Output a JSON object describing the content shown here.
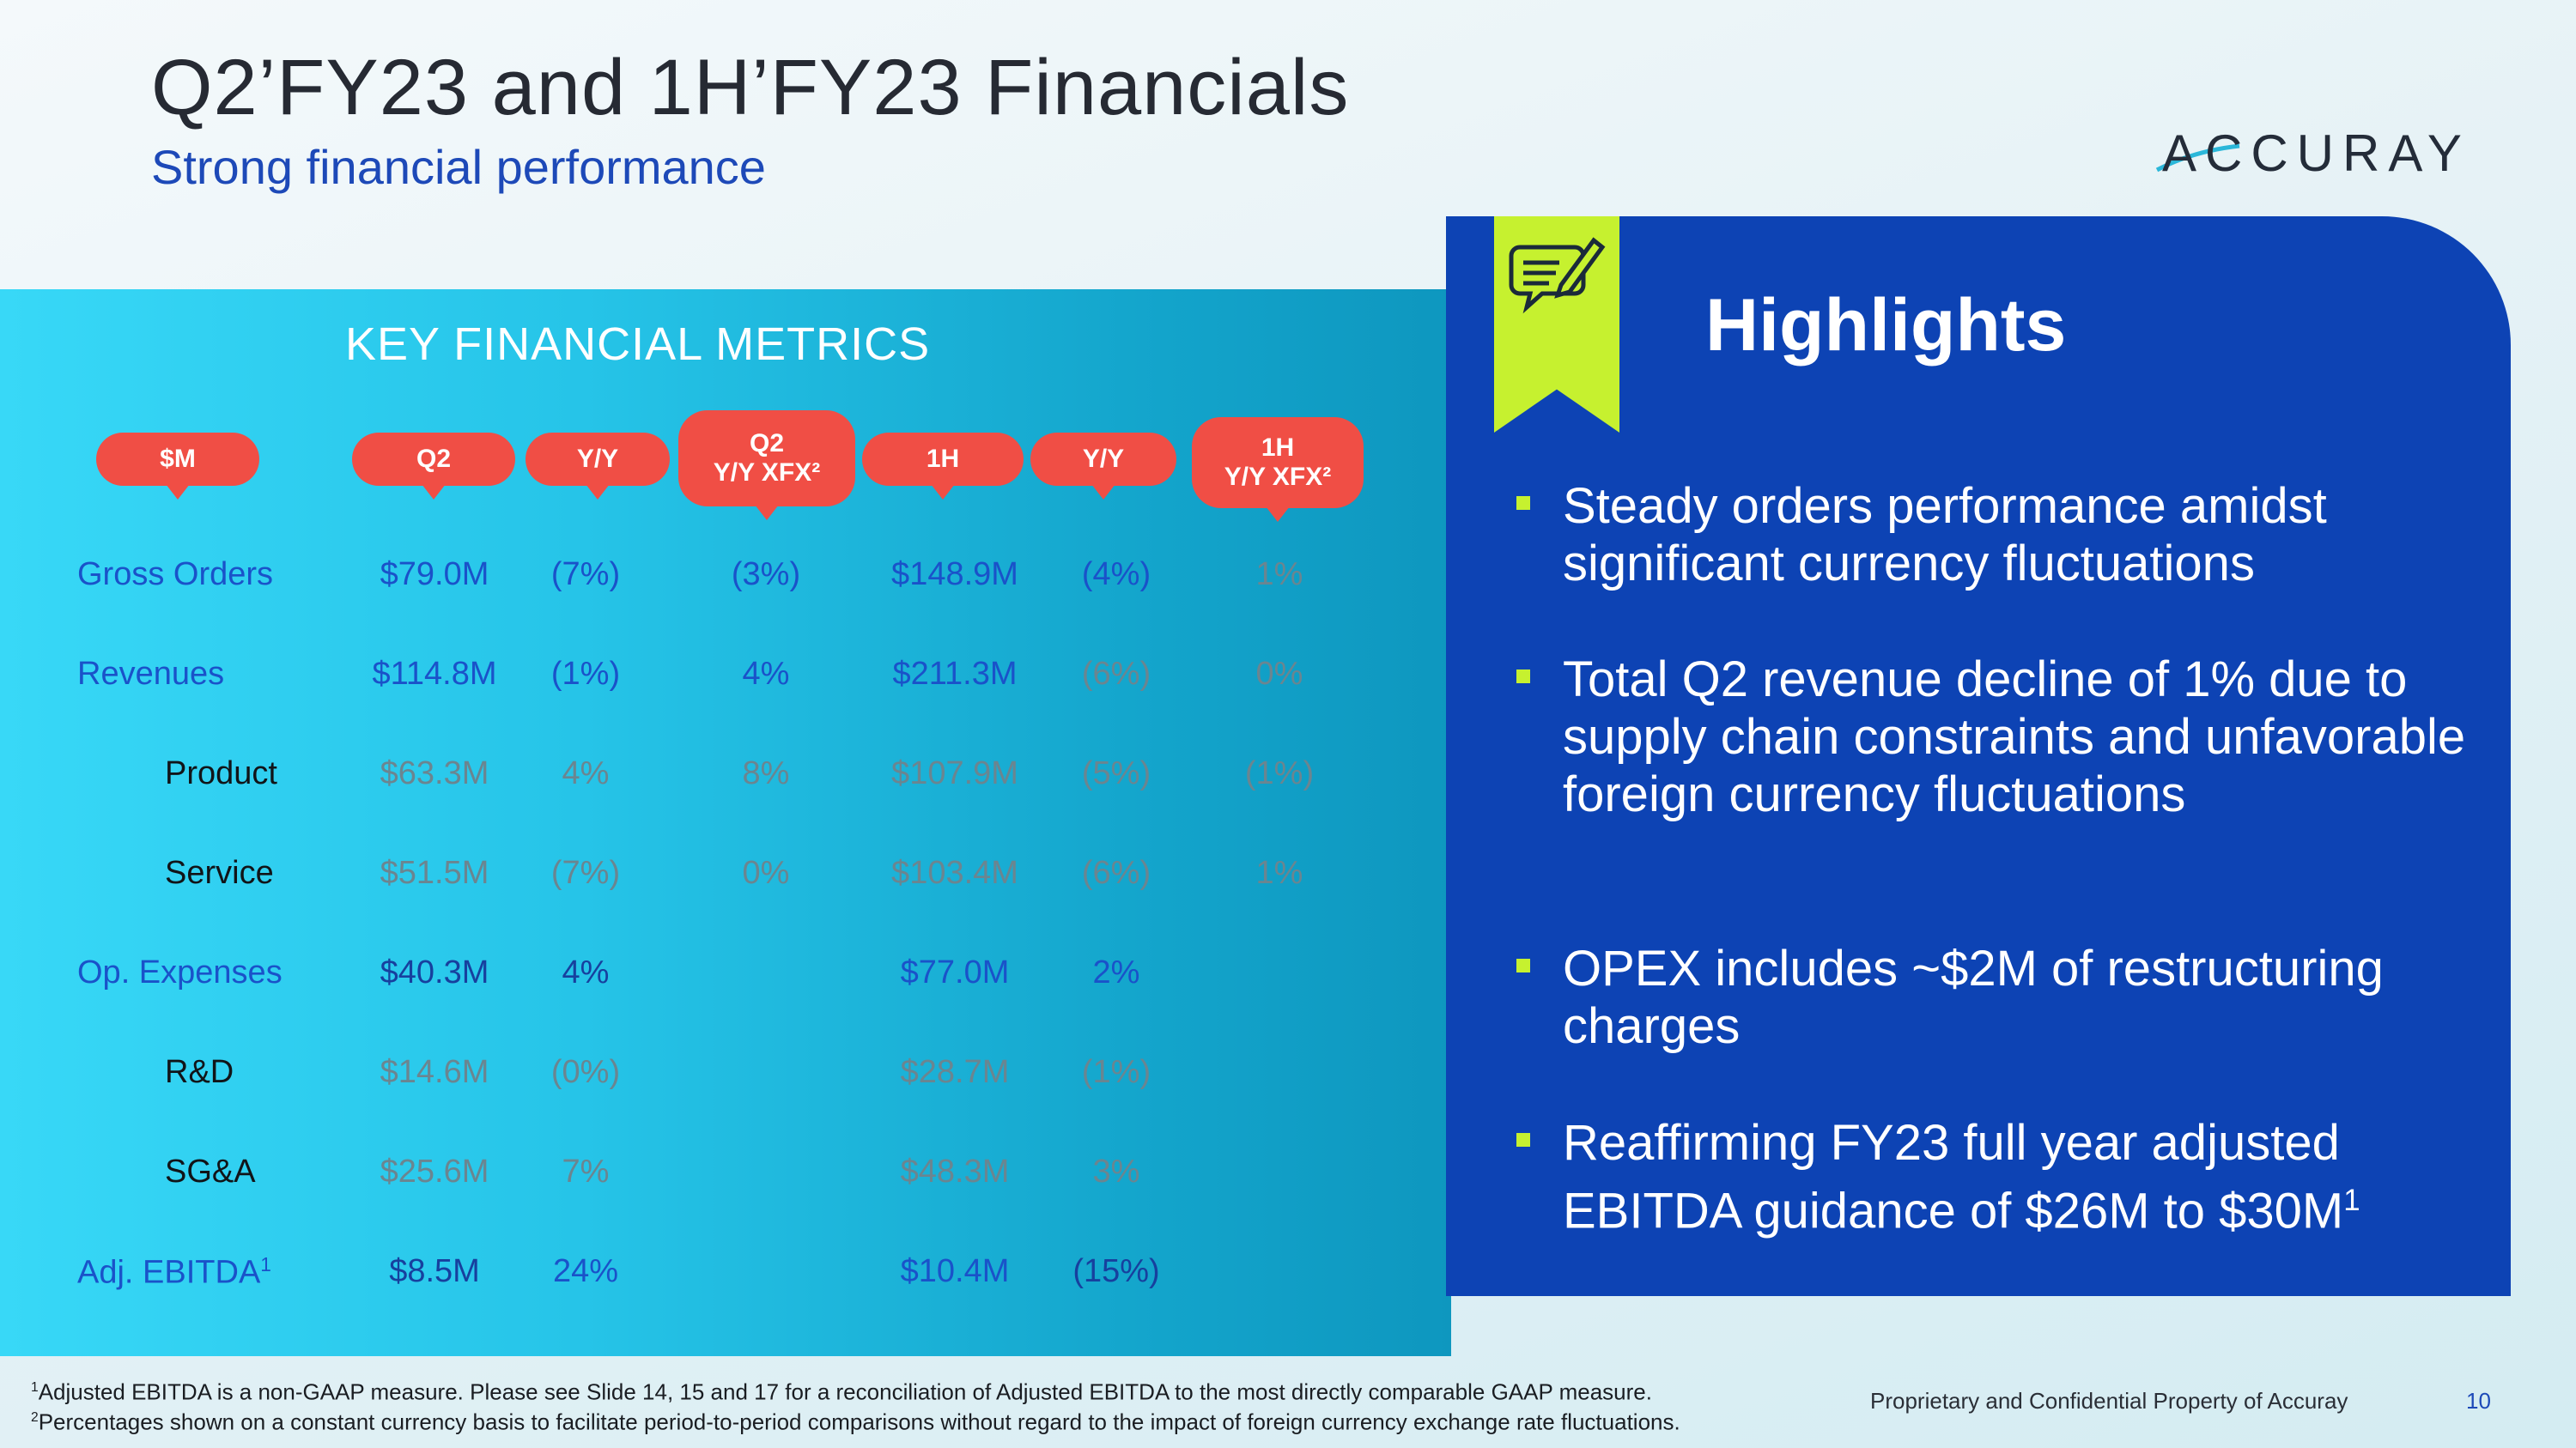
{
  "slide": {
    "title": "Q2’FY23 and 1H’FY23 Financials",
    "subtitle": "Strong financial performance",
    "logo_text": "ACCURAY",
    "page_number": "10",
    "footer": "Proprietary and Confidential Property of Accuray"
  },
  "metrics": {
    "header": "KEY FINANCIAL METRICS",
    "columns": [
      {
        "line1": "$M",
        "line2": ""
      },
      {
        "line1": "Q2",
        "line2": ""
      },
      {
        "line1": "Y/Y",
        "line2": ""
      },
      {
        "line1": "Q2",
        "line2": "Y/Y XFX²"
      },
      {
        "line1": "1H",
        "line2": ""
      },
      {
        "line1": "Y/Y",
        "line2": ""
      },
      {
        "line1": "1H",
        "line2": "Y/Y XFX²"
      }
    ],
    "rows": [
      {
        "label": "Gross Orders",
        "cells": [
          "$79.0M",
          "(7%)",
          "(3%)",
          "$148.9M",
          "(4%)",
          "1%"
        ]
      },
      {
        "label": "Revenues",
        "cells": [
          "$114.8M",
          "(1%)",
          "4%",
          "$211.3M",
          "(6%)",
          "0%"
        ]
      },
      {
        "label": "Product",
        "cells": [
          "$63.3M",
          "4%",
          "8%",
          "$107.9M",
          "(5%)",
          "(1%)"
        ]
      },
      {
        "label": "Service",
        "cells": [
          "$51.5M",
          "(7%)",
          "0%",
          "$103.4M",
          "(6%)",
          "1%"
        ]
      },
      {
        "label": "Op. Expenses",
        "cells": [
          "$40.3M",
          "4%",
          "",
          "$77.0M",
          "2%",
          ""
        ]
      },
      {
        "label": "R&D",
        "cells": [
          "$14.6M",
          "(0%)",
          "",
          "$28.7M",
          "(1%)",
          ""
        ]
      },
      {
        "label": "SG&A",
        "cells": [
          "$25.6M",
          "7%",
          "",
          "$48.3M",
          "3%",
          ""
        ]
      },
      {
        "label": "Adj. EBITDA",
        "label_sup": "1",
        "cells": [
          "$8.5M",
          "24%",
          "",
          "$10.4M",
          "(15%)",
          ""
        ]
      }
    ]
  },
  "highlights": {
    "title": "Highlights",
    "bullets": [
      "Steady orders performance amidst significant currency fluctuations",
      "Total Q2 revenue decline of 1% due to supply chain constraints and unfavorable foreign currency fluctuations",
      "OPEX includes ~$2M of restructuring charges",
      "Reaffirming FY23 full year adjusted EBITDA guidance of $26M to $30M"
    ],
    "last_bullet_sup": "1"
  },
  "footnotes": [
    {
      "num": "1",
      "text": "Adjusted EBITDA is a non-GAAP measure.  Please see Slide 14, 15 and 17 for a reconciliation of Adjusted EBITDA to the most directly comparable GAAP measure."
    },
    {
      "num": "2",
      "text": "Percentages shown on a constant currency basis to facilitate period-to-period comparisons without regard to the impact of foreign currency exchange rate fluctuations."
    }
  ],
  "colors": {
    "accent_red": "#f04e45",
    "highlights_blue": "#0d43b4",
    "ribbon_green": "#c6f12f",
    "metrics_cyan": "#26c4e8"
  },
  "icons": [
    "accuray-swoosh-logo",
    "note-pencil-icon"
  ]
}
